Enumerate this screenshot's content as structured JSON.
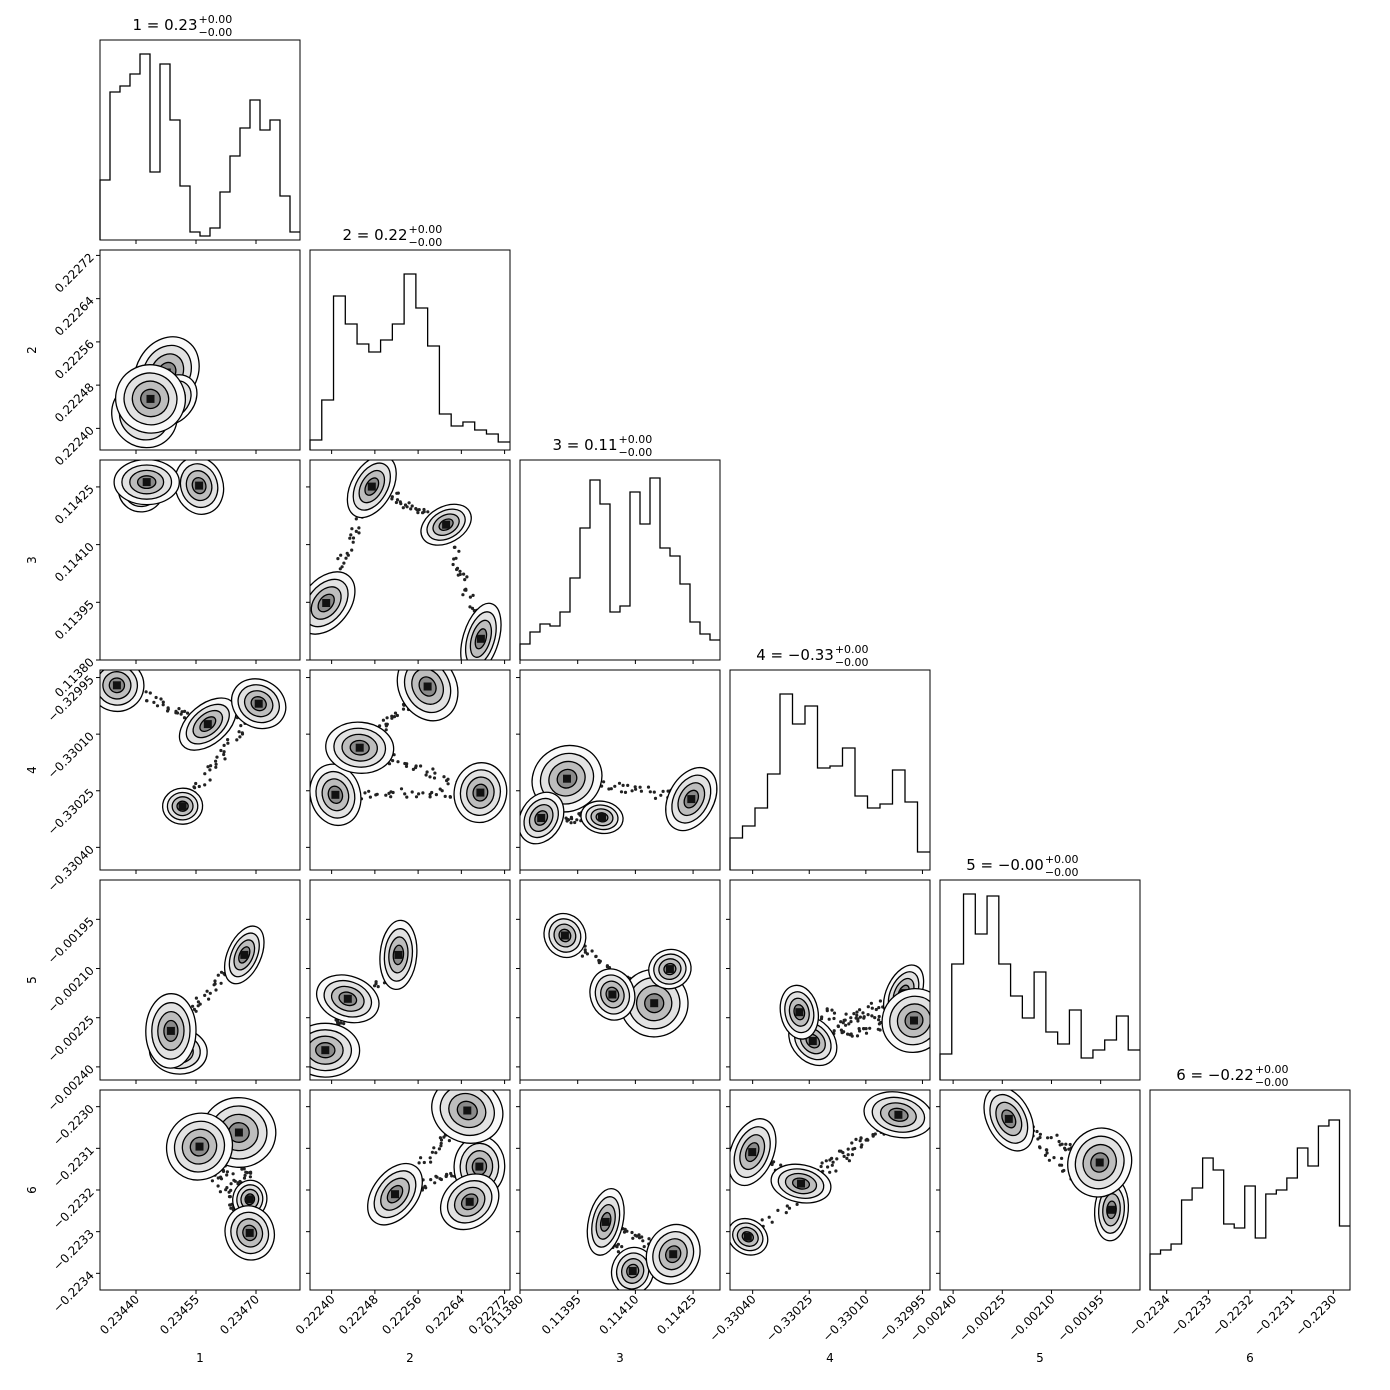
{
  "chart_data": {
    "type": "corner",
    "parameters": [
      "1",
      "2",
      "3",
      "4",
      "5",
      "6"
    ],
    "titles": [
      {
        "main": "1 = 0.23",
        "sup": "+0.00",
        "sub": "−0.00"
      },
      {
        "main": "2 = 0.22",
        "sup": "+0.00",
        "sub": "−0.00"
      },
      {
        "main": "3 = 0.11",
        "sup": "+0.00",
        "sub": "−0.00"
      },
      {
        "main": "4 = −0.33",
        "sup": "+0.00",
        "sub": "−0.00"
      },
      {
        "main": "5 = −0.00",
        "sup": "+0.00",
        "sub": "−0.00"
      },
      {
        "main": "6 = −0.22",
        "sup": "+0.00",
        "sub": "−0.00"
      }
    ],
    "ranges": [
      [
        0.23431,
        0.23481
      ],
      [
        0.22236,
        0.22273
      ],
      [
        0.1138,
        0.11432
      ],
      [
        -0.33046,
        -0.32993
      ],
      [
        -0.00244,
        -0.00183
      ],
      [
        -0.22344,
        -0.22296
      ]
    ],
    "ticks": [
      [
        0.2344,
        0.23455,
        0.2347
      ],
      [
        0.2224,
        0.22248,
        0.22256,
        0.22264,
        0.22272
      ],
      [
        0.1138,
        0.11395,
        0.1141,
        0.11425
      ],
      [
        -0.3304,
        -0.33025,
        -0.3301,
        -0.32995
      ],
      [
        -0.0024,
        -0.00225,
        -0.0021,
        -0.00195
      ],
      [
        -0.2234,
        -0.2233,
        -0.2232,
        -0.2231,
        -0.223
      ]
    ],
    "tick_labels": [
      [
        "0.23440",
        "0.23455",
        "0.23470"
      ],
      [
        "0.22240",
        "0.22248",
        "0.22256",
        "0.22264",
        "0.22272"
      ],
      [
        "0.11380",
        "0.11395",
        "0.11410",
        "0.11425"
      ],
      [
        "−0.33040",
        "−0.33025",
        "−0.33010",
        "−0.32995"
      ],
      [
        "−0.00240",
        "−0.00225",
        "−0.00210",
        "−0.00195"
      ],
      [
        "−0.2234",
        "−0.2233",
        "−0.2232",
        "−0.2231",
        "−0.2230"
      ]
    ],
    "histograms": [
      [
        0.3,
        0.74,
        0.77,
        0.83,
        0.93,
        0.34,
        0.88,
        0.6,
        0.27,
        0.04,
        0.02,
        0.06,
        0.24,
        0.42,
        0.56,
        0.7,
        0.55,
        0.6,
        0.22,
        0.04
      ],
      [
        0.05,
        0.25,
        0.77,
        0.63,
        0.53,
        0.49,
        0.55,
        0.63,
        0.88,
        0.71,
        0.52,
        0.18,
        0.12,
        0.14,
        0.1,
        0.08,
        0.04
      ],
      [
        0.08,
        0.14,
        0.18,
        0.17,
        0.24,
        0.41,
        0.66,
        0.9,
        0.78,
        0.24,
        0.27,
        0.84,
        0.68,
        0.91,
        0.56,
        0.52,
        0.38,
        0.19,
        0.13,
        0.1
      ],
      [
        0.16,
        0.22,
        0.31,
        0.48,
        0.88,
        0.73,
        0.82,
        0.51,
        0.52,
        0.61,
        0.37,
        0.31,
        0.33,
        0.5,
        0.34,
        0.09
      ],
      [
        0.13,
        0.58,
        0.93,
        0.73,
        0.92,
        0.58,
        0.42,
        0.31,
        0.54,
        0.24,
        0.18,
        0.35,
        0.11,
        0.15,
        0.2,
        0.32,
        0.15
      ],
      [
        0.18,
        0.2,
        0.23,
        0.45,
        0.51,
        0.66,
        0.6,
        0.33,
        0.31,
        0.52,
        0.26,
        0.48,
        0.5,
        0.56,
        0.71,
        0.62,
        0.82,
        0.85,
        0.32
      ]
    ]
  }
}
